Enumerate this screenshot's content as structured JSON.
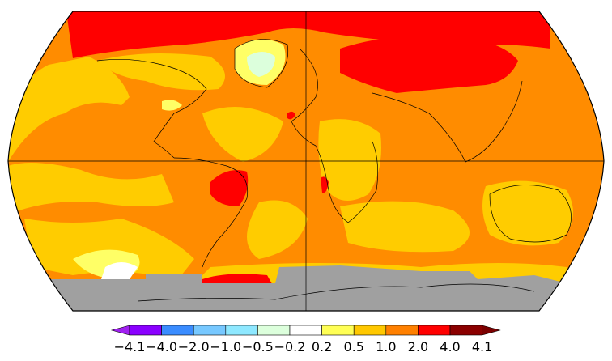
{
  "map": {
    "projection": "robinson",
    "colors": {
      "ocean_base": "#ff8c00",
      "warm_yellow": "#ffcc00",
      "light_yellow": "#ffff66",
      "hot_red": "#ff0000",
      "no_data_gray": "#a0a0a0",
      "pale_cyan": "#dcffdc",
      "outline": "#000000"
    }
  },
  "legend": {
    "tick_labels": [
      "−4.1",
      "−4.0",
      "−2.0",
      "−1.0",
      "−0.5",
      "−0.2",
      "0.2",
      "0.5",
      "1.0",
      "2.0",
      "4.0",
      "4.1"
    ],
    "bins": [
      {
        "color": "#8a00ff"
      },
      {
        "color": "#3a8cff"
      },
      {
        "color": "#77c8ff"
      },
      {
        "color": "#8ee8ff"
      },
      {
        "color": "#dcffdc"
      },
      {
        "color": "#ffffff"
      },
      {
        "color": "#ffff55"
      },
      {
        "color": "#ffc800"
      },
      {
        "color": "#ff8000"
      },
      {
        "color": "#ff0000"
      },
      {
        "color": "#8b0000"
      }
    ],
    "arrow_low_color": "#a020f0",
    "arrow_high_color": "#7a0000"
  }
}
